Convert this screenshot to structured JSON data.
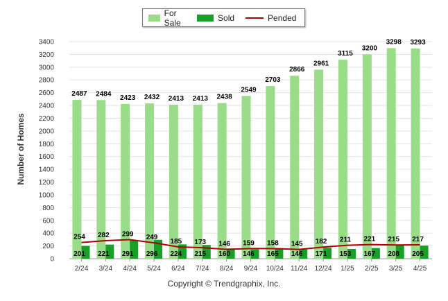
{
  "legend": {
    "for_sale": "For Sale",
    "sold": "Sold",
    "pended": "Pended"
  },
  "ylabel": "Number of Homes",
  "copyright": "Copyright © Trendgraphix, Inc.",
  "colors": {
    "for_sale": "#99dd88",
    "sold": "#16a025",
    "pended": "#b00000",
    "grid": "#e3e3e3"
  },
  "chart_data": {
    "type": "bar",
    "categories": [
      "2/24",
      "3/24",
      "4/24",
      "5/24",
      "6/24",
      "7/24",
      "8/24",
      "9/24",
      "10/24",
      "11/24",
      "12/24",
      "1/25",
      "2/25",
      "3/25",
      "4/25"
    ],
    "series": [
      {
        "name": "For Sale",
        "type": "bar",
        "values": [
          2487,
          2484,
          2423,
          2432,
          2413,
          2413,
          2438,
          2549,
          2703,
          2866,
          2961,
          3115,
          3200,
          3298,
          3293
        ]
      },
      {
        "name": "Sold",
        "type": "bar",
        "values": [
          201,
          221,
          291,
          296,
          224,
          215,
          160,
          146,
          165,
          146,
          171,
          153,
          167,
          208,
          205
        ]
      },
      {
        "name": "Pended",
        "type": "line",
        "values": [
          254,
          282,
          299,
          249,
          185,
          173,
          146,
          159,
          158,
          145,
          182,
          211,
          221,
          215,
          217
        ]
      }
    ],
    "ylabel": "Number of Homes",
    "ylim": [
      0,
      3400
    ],
    "yticks": [
      0,
      200,
      400,
      600,
      800,
      1000,
      1200,
      1400,
      1600,
      1800,
      2000,
      2200,
      2400,
      2600,
      2800,
      3000,
      3200,
      3400
    ],
    "grid": true,
    "legend_position": "top"
  }
}
